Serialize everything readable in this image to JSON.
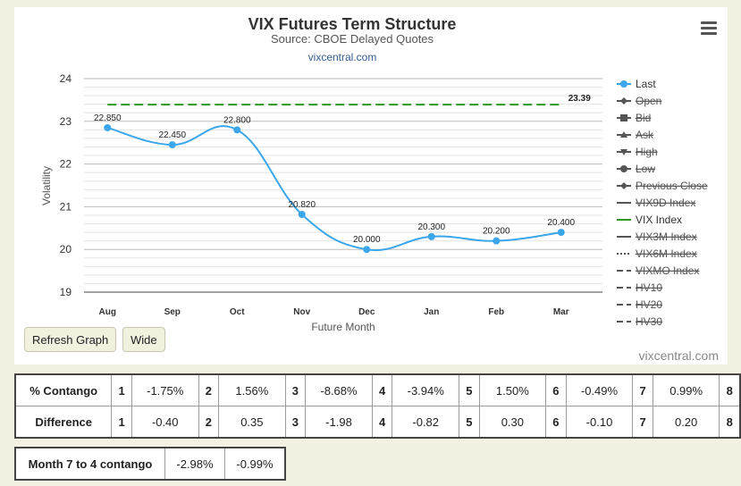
{
  "chart_data": {
    "type": "line",
    "title": "VIX Futures Term Structure",
    "subtitle": "Source: CBOE Delayed Quotes",
    "source_link": "vixcentral.com",
    "credit": "vixcentral.com",
    "xlabel": "Future Month",
    "ylabel": "Volatility",
    "categories": [
      "Aug",
      "Sep",
      "Oct",
      "Nov",
      "Dec",
      "Jan",
      "Feb",
      "Mar"
    ],
    "ylim": [
      19,
      24
    ],
    "yticks": [
      "19",
      "20",
      "21",
      "22",
      "23",
      "24"
    ],
    "grid": true,
    "legend_position": "right",
    "series": [
      {
        "name": "Last",
        "color": "#3ba6ea",
        "values": [
          22.85,
          22.45,
          22.8,
          20.82,
          20.0,
          20.3,
          20.2,
          20.4
        ],
        "labels": [
          "22.850",
          "22.450",
          "22.800",
          "20.820",
          "20.000",
          "20.300",
          "20.200",
          "20.400"
        ]
      },
      {
        "name": "VIX Index",
        "color": "#2b9a1e",
        "style": "dashed",
        "value": 23.39,
        "label": "23.39"
      }
    ],
    "legend": [
      {
        "name": "Last",
        "marker": "circle",
        "line": "solid",
        "color": "#3ba6ea",
        "hidden": false
      },
      {
        "name": "Open",
        "marker": "diamond",
        "line": "solid",
        "color": "#555",
        "hidden": true
      },
      {
        "name": "Bid",
        "marker": "square",
        "line": "solid",
        "color": "#555",
        "hidden": true
      },
      {
        "name": "Ask",
        "marker": "triangle",
        "line": "solid",
        "color": "#555",
        "hidden": true
      },
      {
        "name": "High",
        "marker": "triangle-down",
        "line": "solid",
        "color": "#555",
        "hidden": true
      },
      {
        "name": "Low",
        "marker": "circle",
        "line": "solid",
        "color": "#555",
        "hidden": true
      },
      {
        "name": "Previous Close",
        "marker": "diamond",
        "line": "solid",
        "color": "#555",
        "hidden": true
      },
      {
        "name": "VIX9D Index",
        "marker": "none",
        "line": "solid",
        "color": "#555",
        "hidden": true
      },
      {
        "name": "VIX Index",
        "marker": "none",
        "line": "solid",
        "color": "#2b9a1e",
        "hidden": false
      },
      {
        "name": "VIX3M Index",
        "marker": "none",
        "line": "solid",
        "color": "#555",
        "hidden": true
      },
      {
        "name": "VIX6M Index",
        "marker": "none",
        "line": "dotted",
        "color": "#555",
        "hidden": true
      },
      {
        "name": "VIXMO Index",
        "marker": "none",
        "line": "dashed",
        "color": "#555",
        "hidden": true
      },
      {
        "name": "HV10",
        "marker": "none",
        "line": "dashed",
        "color": "#555",
        "hidden": true
      },
      {
        "name": "HV20",
        "marker": "none",
        "line": "dashed",
        "color": "#555",
        "hidden": true
      },
      {
        "name": "HV30",
        "marker": "none",
        "line": "dashed",
        "color": "#555",
        "hidden": true
      }
    ]
  },
  "buttons": {
    "refresh": "Refresh Graph",
    "wide": "Wide"
  },
  "contango_table": {
    "row_label": "% Contango",
    "diff_label": "Difference",
    "contango": [
      {
        "n": "1",
        "v": "-1.75%"
      },
      {
        "n": "2",
        "v": "1.56%"
      },
      {
        "n": "3",
        "v": "-8.68%"
      },
      {
        "n": "4",
        "v": "-3.94%"
      },
      {
        "n": "5",
        "v": "1.50%"
      },
      {
        "n": "6",
        "v": "-0.49%"
      },
      {
        "n": "7",
        "v": "0.99%"
      },
      {
        "n": "8",
        "v": ""
      }
    ],
    "difference": [
      {
        "n": "1",
        "v": "-0.40"
      },
      {
        "n": "2",
        "v": "0.35"
      },
      {
        "n": "3",
        "v": "-1.98"
      },
      {
        "n": "4",
        "v": "-0.82"
      },
      {
        "n": "5",
        "v": "0.30"
      },
      {
        "n": "6",
        "v": "-0.10"
      },
      {
        "n": "7",
        "v": "0.20"
      },
      {
        "n": "8",
        "v": ""
      }
    ]
  },
  "month74": {
    "label": "Month 7 to 4 contango",
    "values": [
      "-2.98%",
      "-0.99%"
    ]
  }
}
